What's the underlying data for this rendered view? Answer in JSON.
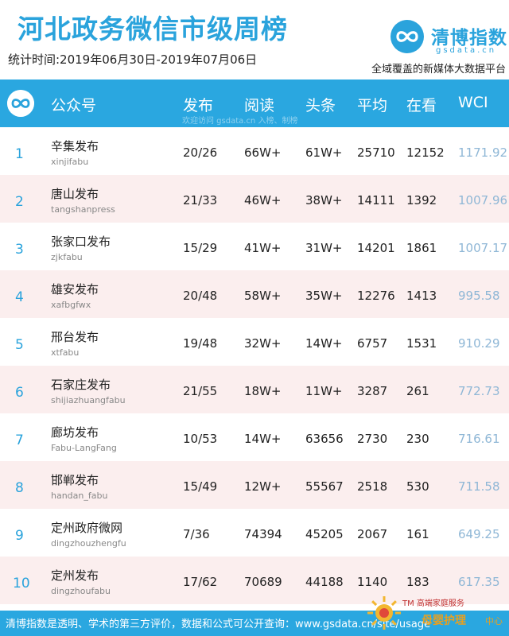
{
  "header": {
    "title": "河北政务微信市级周榜",
    "period": "统计时间:2019年06月30日-2019年07月06日",
    "brand_cn": "清博指数",
    "brand_en": "gsdata.cn",
    "slogan": "全域覆盖的新媒体大数据平台"
  },
  "table": {
    "columns": {
      "account": "公众号",
      "published": "发布",
      "reads": "阅读",
      "headline": "头条",
      "average": "平均",
      "watching": "在看",
      "wci": "WCI"
    },
    "watermark": "欢迎访问 gsdata.cn 入榜、制榜",
    "rows": [
      {
        "rank": "1",
        "name": "辛集发布",
        "account": "xinjifabu",
        "published": "20/26",
        "reads": "66W+",
        "headline": "61W+",
        "average": "25710",
        "watching": "12152",
        "wci": "1171.92"
      },
      {
        "rank": "2",
        "name": "唐山发布",
        "account": "tangshanpress",
        "published": "21/33",
        "reads": "46W+",
        "headline": "38W+",
        "average": "14111",
        "watching": "1392",
        "wci": "1007.96"
      },
      {
        "rank": "3",
        "name": "张家口发布",
        "account": "zjkfabu",
        "published": "15/29",
        "reads": "41W+",
        "headline": "31W+",
        "average": "14201",
        "watching": "1861",
        "wci": "1007.17"
      },
      {
        "rank": "4",
        "name": "雄安发布",
        "account": "xafbgfwx",
        "published": "20/48",
        "reads": "58W+",
        "headline": "35W+",
        "average": "12276",
        "watching": "1413",
        "wci": "995.58"
      },
      {
        "rank": "5",
        "name": "邢台发布",
        "account": "xtfabu",
        "published": "19/48",
        "reads": "32W+",
        "headline": "14W+",
        "average": "6757",
        "watching": "1531",
        "wci": "910.29"
      },
      {
        "rank": "6",
        "name": "石家庄发布",
        "account": "shijiazhuangfabu",
        "published": "21/55",
        "reads": "18W+",
        "headline": "11W+",
        "average": "3287",
        "watching": "261",
        "wci": "772.73"
      },
      {
        "rank": "7",
        "name": "廊坊发布",
        "account": "Fabu-LangFang",
        "published": "10/53",
        "reads": "14W+",
        "headline": "63656",
        "average": "2730",
        "watching": "230",
        "wci": "716.61"
      },
      {
        "rank": "8",
        "name": "邯郸发布",
        "account": "handan_fabu",
        "published": "15/49",
        "reads": "12W+",
        "headline": "55567",
        "average": "2518",
        "watching": "530",
        "wci": "711.58"
      },
      {
        "rank": "9",
        "name": "定州政府微网",
        "account": "dingzhouzhengfu",
        "published": "7/36",
        "reads": "74394",
        "headline": "45205",
        "average": "2067",
        "watching": "161",
        "wci": "649.25"
      },
      {
        "rank": "10",
        "name": "定州发布",
        "account": "dingzhoufabu",
        "published": "17/62",
        "reads": "70689",
        "headline": "44188",
        "average": "1140",
        "watching": "183",
        "wci": "617.35"
      }
    ]
  },
  "footer": {
    "text": "清博指数是透明、学术的第三方评价，数据和公式可公开查询：www.gsdata.cn/site/usage"
  },
  "badge": {
    "top": "TM 高端家庭服务",
    "main": "母婴护理",
    "sub": "中心"
  },
  "colors": {
    "accent": "#2aa7e0",
    "row_alt": "#fbeeee",
    "wci_text": "#8fb7d6",
    "badge_gold": "#e8a020"
  },
  "icons": {
    "brand_logo": "infinity-logo-icon",
    "header_logo": "infinity-logo-icon",
    "badge": "sun-badge-icon"
  }
}
